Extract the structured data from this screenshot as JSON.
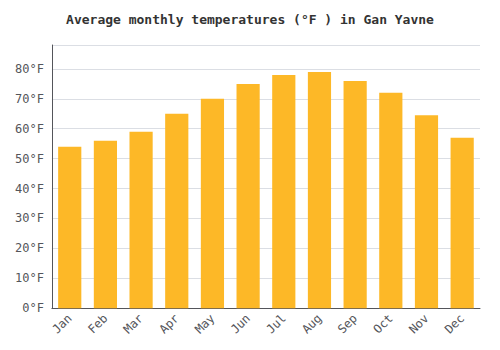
{
  "chart_data": {
    "type": "bar",
    "title": "Average monthly temperatures (°F ) in Gan Yavne",
    "categories": [
      "Jan",
      "Feb",
      "Mar",
      "Apr",
      "May",
      "Jun",
      "Jul",
      "Aug",
      "Sep",
      "Oct",
      "Nov",
      "Dec"
    ],
    "values": [
      54,
      56,
      59,
      65,
      70,
      75,
      78,
      79,
      76,
      72,
      64.5,
      57
    ],
    "color": "#FDB827",
    "ylim": [
      0,
      88
    ],
    "yticks": [
      {
        "value": 0,
        "label": "0°F"
      },
      {
        "value": 10,
        "label": "10°F"
      },
      {
        "value": 20,
        "label": "20°F"
      },
      {
        "value": 30,
        "label": "30°F"
      },
      {
        "value": 40,
        "label": "40°F"
      },
      {
        "value": 50,
        "label": "50°F"
      },
      {
        "value": 60,
        "label": "60°F"
      },
      {
        "value": 70,
        "label": "70°F"
      },
      {
        "value": 80,
        "label": "80°F"
      }
    ],
    "grid": true
  }
}
